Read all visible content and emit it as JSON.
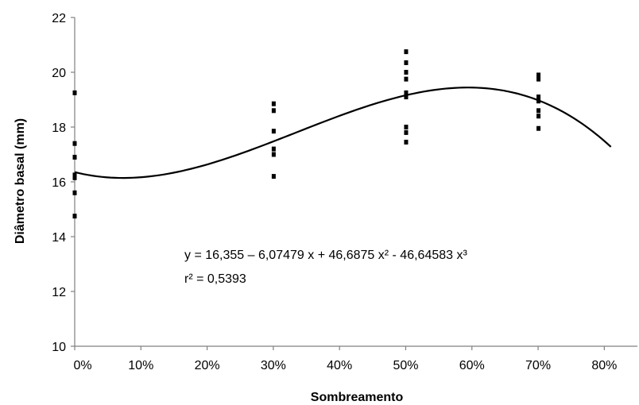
{
  "chart_data": {
    "type": "scatter",
    "title": "",
    "xlabel": "Sombreamento",
    "ylabel": "Diâmetro basal (mm)",
    "xlim": [
      0,
      0.85
    ],
    "ylim": [
      10,
      22
    ],
    "x_ticks": [
      0,
      0.1,
      0.2,
      0.3,
      0.4,
      0.5,
      0.6,
      0.7,
      0.8
    ],
    "x_tick_labels": [
      "0%",
      "10%",
      "20%",
      "30%",
      "40%",
      "50%",
      "60%",
      "70%",
      "80%"
    ],
    "y_ticks": [
      10,
      12,
      14,
      16,
      18,
      20,
      22
    ],
    "y_tick_labels": [
      "10",
      "12",
      "14",
      "16",
      "18",
      "20",
      "22"
    ],
    "grid": false,
    "series": [
      {
        "points": [
          {
            "x": 0,
            "y": 19.25
          },
          {
            "x": 0,
            "y": 17.4
          },
          {
            "x": 0,
            "y": 16.9
          },
          {
            "x": 0,
            "y": 16.25
          },
          {
            "x": 0,
            "y": 16.15
          },
          {
            "x": 0,
            "y": 15.6
          },
          {
            "x": 0,
            "y": 14.75
          },
          {
            "x": 0.3,
            "y": 18.85
          },
          {
            "x": 0.3,
            "y": 18.6
          },
          {
            "x": 0.3,
            "y": 17.85
          },
          {
            "x": 0.3,
            "y": 17.2
          },
          {
            "x": 0.3,
            "y": 17.0
          },
          {
            "x": 0.3,
            "y": 16.2
          },
          {
            "x": 0.5,
            "y": 20.75
          },
          {
            "x": 0.5,
            "y": 20.35
          },
          {
            "x": 0.5,
            "y": 20.0
          },
          {
            "x": 0.5,
            "y": 19.75
          },
          {
            "x": 0.5,
            "y": 19.25
          },
          {
            "x": 0.5,
            "y": 19.1
          },
          {
            "x": 0.5,
            "y": 18.0
          },
          {
            "x": 0.5,
            "y": 17.8
          },
          {
            "x": 0.5,
            "y": 17.45
          },
          {
            "x": 0.7,
            "y": 19.9
          },
          {
            "x": 0.7,
            "y": 19.75
          },
          {
            "x": 0.7,
            "y": 19.1
          },
          {
            "x": 0.7,
            "y": 18.95
          },
          {
            "x": 0.7,
            "y": 18.6
          },
          {
            "x": 0.7,
            "y": 18.4
          },
          {
            "x": 0.7,
            "y": 17.95
          }
        ]
      }
    ],
    "fit": {
      "type": "cubic",
      "coefficients": [
        16.355,
        -6.07479,
        46.6875,
        -46.64583
      ],
      "x_range": [
        0,
        0.81
      ]
    },
    "annotations": [
      "y = 16,355 – 6,07479 x + 46,6875 x² - 46,64583 x³",
      "r² = 0,5393"
    ]
  }
}
